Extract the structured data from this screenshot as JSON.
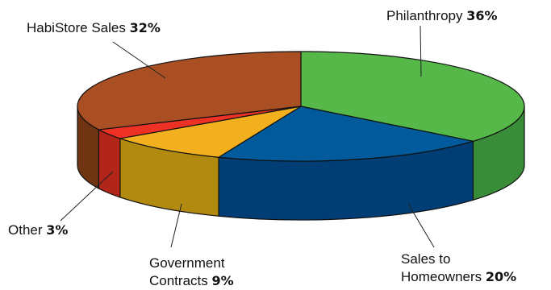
{
  "chart_data": {
    "type": "pie",
    "style": "3d",
    "slices": [
      {
        "name": "Philanthropy",
        "percent_label": "36%",
        "value": 36,
        "color": "#55B848",
        "side_color": "#3A8D38"
      },
      {
        "name": "Sales to Homeowners",
        "label_lines": [
          "Sales to",
          "Homeowners"
        ],
        "percent_label": "20%",
        "value": 20,
        "color": "#005A9B",
        "side_color": "#003E75"
      },
      {
        "name": "Government Contracts",
        "label_lines": [
          "Government",
          "Contracts"
        ],
        "percent_label": "9%",
        "value": 9,
        "color": "#F2B01E",
        "side_color": "#B38A10"
      },
      {
        "name": "Other",
        "percent_label": "3%",
        "value": 3,
        "color": "#ED3124",
        "side_color": "#B22519"
      },
      {
        "name": "HabiStore Sales",
        "percent_label": "32%",
        "value": 32,
        "color": "#AA4E24",
        "side_color": "#6F3412"
      }
    ]
  }
}
